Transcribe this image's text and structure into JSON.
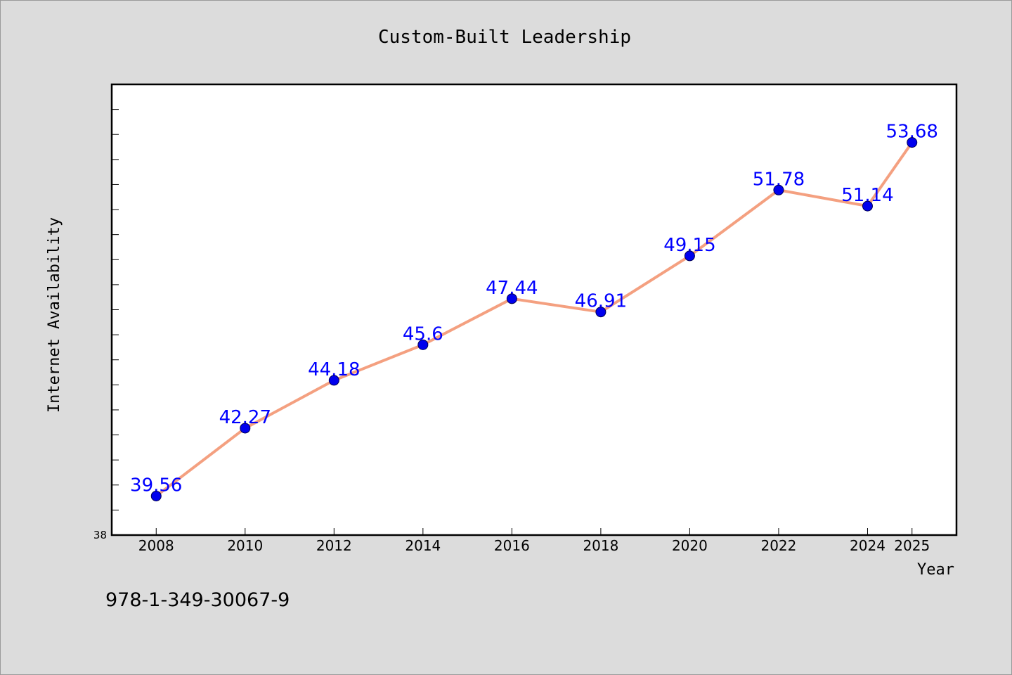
{
  "chart_data": {
    "type": "line",
    "title": "Custom-Built Leadership",
    "xlabel": "Year",
    "ylabel": "Internet Availability",
    "x": [
      2008,
      2010,
      2012,
      2014,
      2016,
      2018,
      2020,
      2022,
      2024,
      2025
    ],
    "categories": [
      "2008",
      "2010",
      "2012",
      "2014",
      "2016",
      "2018",
      "2020",
      "2022",
      "2024",
      "2025"
    ],
    "values": [
      39.56,
      42.27,
      44.18,
      45.6,
      47.44,
      46.91,
      49.15,
      51.78,
      51.14,
      53.68
    ],
    "data_labels": [
      "39.56",
      "42.27",
      "44.18",
      "45.6",
      "47.44",
      "46.91",
      "49.15",
      "51.78",
      "51.14",
      "53.68"
    ],
    "ylim": [
      38,
      56
    ],
    "y_tick_labels": [
      "38"
    ],
    "grid": false,
    "legend": "none",
    "colors": {
      "line": "#f4a080",
      "marker": "#0000ee",
      "marker_edge": "#000055",
      "data_label": "#0000ff",
      "background": "#dcdcdc",
      "plot_background": "#ffffff"
    }
  },
  "footer": {
    "isbn": "978-1-349-30067-9"
  }
}
